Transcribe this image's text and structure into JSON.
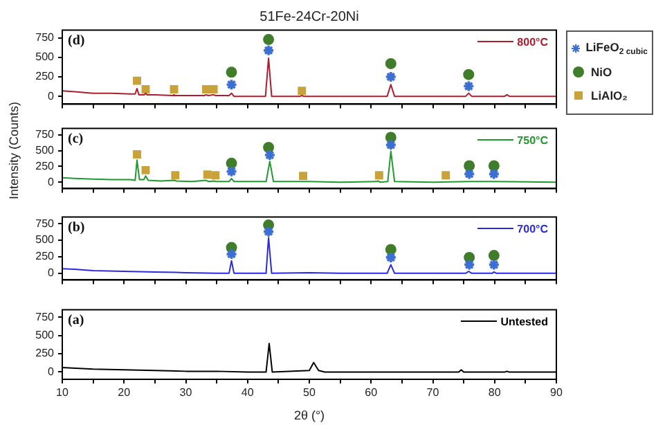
{
  "chart_data": [
    {
      "type": "line",
      "title": "51Fe-24Cr-20Ni",
      "xlim": [
        10,
        90
      ],
      "xticks": [
        10,
        {
          "value": 15,
          "label": null
        },
        20,
        {
          "value": 25,
          "label": null
        },
        30,
        {
          "value": 35,
          "label": null
        },
        40,
        {
          "value": 45,
          "label": null
        },
        50,
        {
          "value": 55,
          "label": null
        },
        60,
        {
          "value": 65,
          "label": null
        },
        70,
        {
          "value": 75,
          "label": null
        },
        80,
        {
          "value": 85,
          "label": null
        },
        90
      ],
      "ylim": [
        -100,
        850
      ],
      "yticks": [
        0,
        250,
        500,
        750
      ],
      "tick_labels": "y",
      "legend": "right",
      "annotations": [
        "(d)"
      ],
      "series": [
        {
          "name": "800°C",
          "color": "#b01c2e",
          "marker": "none",
          "x": [
            10,
            12,
            15,
            18,
            21,
            21.8,
            22.1,
            22.4,
            23.3,
            23.5,
            23.7,
            25,
            27.9,
            28.1,
            28.3,
            30,
            33,
            33.3,
            33.6,
            34.5,
            34.8,
            37,
            37.4,
            37.8,
            42.9,
            43.4,
            43.9,
            48.5,
            48.8,
            49.1,
            55,
            62.6,
            63.2,
            63.8,
            70,
            75.3,
            75.8,
            76.3,
            81.6,
            82,
            82.4,
            90
          ],
          "values": [
            70,
            60,
            40,
            40,
            30,
            30,
            100,
            20,
            20,
            40,
            20,
            20,
            10,
            20,
            10,
            10,
            10,
            20,
            10,
            20,
            10,
            10,
            40,
            0,
            0,
            490,
            0,
            0,
            10,
            0,
            0,
            0,
            150,
            0,
            0,
            0,
            40,
            0,
            0,
            20,
            0,
            0
          ]
        },
        {
          "type": "scatter",
          "name": "LiFeO$_{2 cubic}$",
          "color": "#3b6fd4",
          "marker": "cross",
          "x": [
            37.4,
            43.4,
            63.2,
            75.8
          ],
          "values": [
            150,
            590,
            250,
            130
          ]
        },
        {
          "type": "scatter",
          "name": "NiO",
          "color": "#3f7d2a",
          "marker": "circle",
          "x": [
            37.4,
            43.4,
            63.2,
            75.8
          ],
          "values": [
            310,
            730,
            420,
            280
          ]
        },
        {
          "type": "scatter",
          "name": "LiAlO₂",
          "color": "#c9a23a",
          "marker": "square",
          "x": [
            22.1,
            23.5,
            28.1,
            33.3,
            34.5,
            48.8
          ],
          "values": [
            200,
            90,
            90,
            90,
            90,
            70
          ]
        }
      ]
    },
    {
      "type": "line",
      "ylabel": "Intensity (Counts)",
      "xlim": [
        10,
        90
      ],
      "xticks": [
        10,
        {
          "value": 15,
          "label": null
        },
        20,
        {
          "value": 25,
          "label": null
        },
        30,
        {
          "value": 35,
          "label": null
        },
        40,
        {
          "value": 45,
          "label": null
        },
        50,
        {
          "value": 55,
          "label": null
        },
        60,
        {
          "value": 65,
          "label": null
        },
        70,
        {
          "value": 75,
          "label": null
        },
        80,
        {
          "value": 85,
          "label": null
        },
        90
      ],
      "ylim": [
        -100,
        850
      ],
      "yticks": [
        0,
        250,
        500,
        750
      ],
      "tick_labels": "y",
      "legend": "top right",
      "annotations": [
        "(c)"
      ],
      "series": [
        {
          "name": "750°C",
          "color": "#1f9a2c",
          "marker": "none",
          "x": [
            10,
            12,
            15,
            18,
            21,
            21.8,
            22.1,
            22.5,
            23.2,
            23.5,
            23.9,
            26,
            28.1,
            28.5,
            31,
            33.3,
            33.7,
            34.6,
            35,
            37,
            37.4,
            37.8,
            43,
            43.6,
            44.2,
            50,
            55,
            60.8,
            61.1,
            61.5,
            62.7,
            63.2,
            63.8,
            70,
            75.8,
            80,
            90
          ],
          "values": [
            70,
            60,
            50,
            40,
            40,
            30,
            350,
            40,
            40,
            100,
            30,
            20,
            30,
            20,
            10,
            30,
            10,
            20,
            10,
            10,
            60,
            10,
            10,
            330,
            10,
            10,
            0,
            10,
            20,
            0,
            10,
            490,
            10,
            0,
            10,
            10,
            0
          ]
        },
        {
          "type": "scatter",
          "color": "#3b6fd4",
          "marker": "cross",
          "x": [
            37.4,
            43.6,
            63.2,
            75.9,
            79.9
          ],
          "values": [
            170,
            430,
            590,
            130,
            130
          ]
        },
        {
          "type": "scatter",
          "color": "#3f7d2a",
          "marker": "circle",
          "x": [
            37.4,
            43.4,
            63.2,
            75.9,
            79.9
          ],
          "values": [
            300,
            550,
            710,
            260,
            260
          ]
        },
        {
          "type": "scatter",
          "color": "#c9a23a",
          "marker": "square",
          "x": [
            22.1,
            23.5,
            28.3,
            33.5,
            34.8,
            49.0,
            61.3,
            72.1
          ],
          "values": [
            440,
            190,
            110,
            120,
            110,
            100,
            110,
            110
          ]
        }
      ]
    },
    {
      "type": "line",
      "xlim": [
        10,
        90
      ],
      "xticks": [
        10,
        {
          "value": 15,
          "label": null
        },
        20,
        {
          "value": 25,
          "label": null
        },
        30,
        {
          "value": 35,
          "label": null
        },
        40,
        {
          "value": 45,
          "label": null
        },
        50,
        {
          "value": 55,
          "label": null
        },
        60,
        {
          "value": 65,
          "label": null
        },
        70,
        {
          "value": 75,
          "label": null
        },
        80,
        {
          "value": 85,
          "label": null
        },
        90
      ],
      "ylim": [
        -100,
        850
      ],
      "yticks": [
        0,
        250,
        500,
        750
      ],
      "tick_labels": "y",
      "legend": "top right",
      "annotations": [
        "(b)"
      ],
      "series": [
        {
          "name": "700°C",
          "color": "#2a2ae0",
          "marker": "none",
          "x": [
            10,
            12,
            15,
            20,
            25,
            30,
            35,
            37,
            37.4,
            37.8,
            43,
            43.4,
            43.9,
            50,
            55,
            62.6,
            63.2,
            63.8,
            70,
            75.3,
            75.8,
            76.3,
            79.6,
            79.9,
            80.3,
            90
          ],
          "values": [
            70,
            60,
            40,
            30,
            20,
            10,
            0,
            0,
            190,
            0,
            0,
            540,
            0,
            10,
            0,
            0,
            130,
            0,
            0,
            0,
            30,
            0,
            0,
            20,
            0,
            0
          ]
        },
        {
          "type": "scatter",
          "color": "#3b6fd4",
          "marker": "cross",
          "x": [
            37.4,
            43.4,
            63.2,
            75.9,
            79.9
          ],
          "values": [
            290,
            630,
            240,
            130,
            130
          ]
        },
        {
          "type": "scatter",
          "color": "#3f7d2a",
          "marker": "circle",
          "x": [
            37.4,
            43.4,
            63.2,
            75.9,
            79.9
          ],
          "values": [
            390,
            730,
            360,
            240,
            270
          ]
        }
      ]
    },
    {
      "type": "line",
      "xlabel": "2θ (°)",
      "xlim": [
        10,
        90
      ],
      "xticks": [
        10,
        {
          "value": 15,
          "label": null
        },
        20,
        {
          "value": 25,
          "label": null
        },
        30,
        {
          "value": 35,
          "label": null
        },
        40,
        {
          "value": 45,
          "label": null
        },
        50,
        {
          "value": 55,
          "label": null
        },
        60,
        {
          "value": 65,
          "label": null
        },
        70,
        {
          "value": 75,
          "label": null
        },
        80,
        {
          "value": 85,
          "label": null
        },
        90
      ],
      "ylim": [
        -100,
        850
      ],
      "yticks": [
        0,
        250,
        500,
        750
      ],
      "legend": "top right",
      "annotations": [
        "(a)"
      ],
      "series": [
        {
          "name": "Untested",
          "color": "#000000",
          "marker": "none",
          "x": [
            10,
            15,
            20,
            25,
            30,
            35,
            40,
            43,
            43.5,
            44,
            50,
            50.7,
            51.5,
            52.5,
            60,
            70,
            74.2,
            74.6,
            75,
            81.7,
            82,
            82.3,
            90
          ],
          "values": [
            60,
            40,
            30,
            20,
            10,
            10,
            0,
            0,
            390,
            0,
            20,
            130,
            20,
            0,
            0,
            0,
            0,
            30,
            0,
            0,
            10,
            0,
            0
          ]
        }
      ]
    }
  ]
}
